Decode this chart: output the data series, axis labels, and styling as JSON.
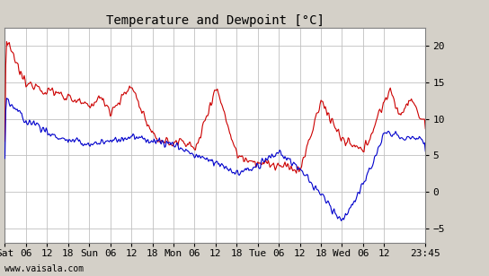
{
  "title": "Temperature and Dewpoint [°C]",
  "xlabel_ticks": [
    "Sat",
    "06",
    "12",
    "18",
    "Sun",
    "06",
    "12",
    "18",
    "Mon",
    "06",
    "12",
    "18",
    "Tue",
    "06",
    "12",
    "18",
    "Wed",
    "06",
    "12",
    "23:45"
  ],
  "xlabel_tick_positions": [
    0,
    6,
    12,
    18,
    24,
    30,
    36,
    42,
    48,
    54,
    60,
    66,
    72,
    78,
    84,
    90,
    96,
    102,
    108,
    119.75
  ],
  "ylabel_ticks": [
    -5,
    0,
    5,
    10,
    15,
    20
  ],
  "ylim": [
    -7,
    22.5
  ],
  "xlim": [
    0,
    119.75
  ],
  "temp_color": "#cc0000",
  "dewpoint_color": "#0000cc",
  "background_color": "#d4d0c8",
  "plot_bg_color": "#ffffff",
  "grid_color": "#c0c0c0",
  "watermark": "www.vaisala.com",
  "title_fontsize": 10,
  "tick_fontsize": 8,
  "watermark_fontsize": 7,
  "line_width": 0.8
}
